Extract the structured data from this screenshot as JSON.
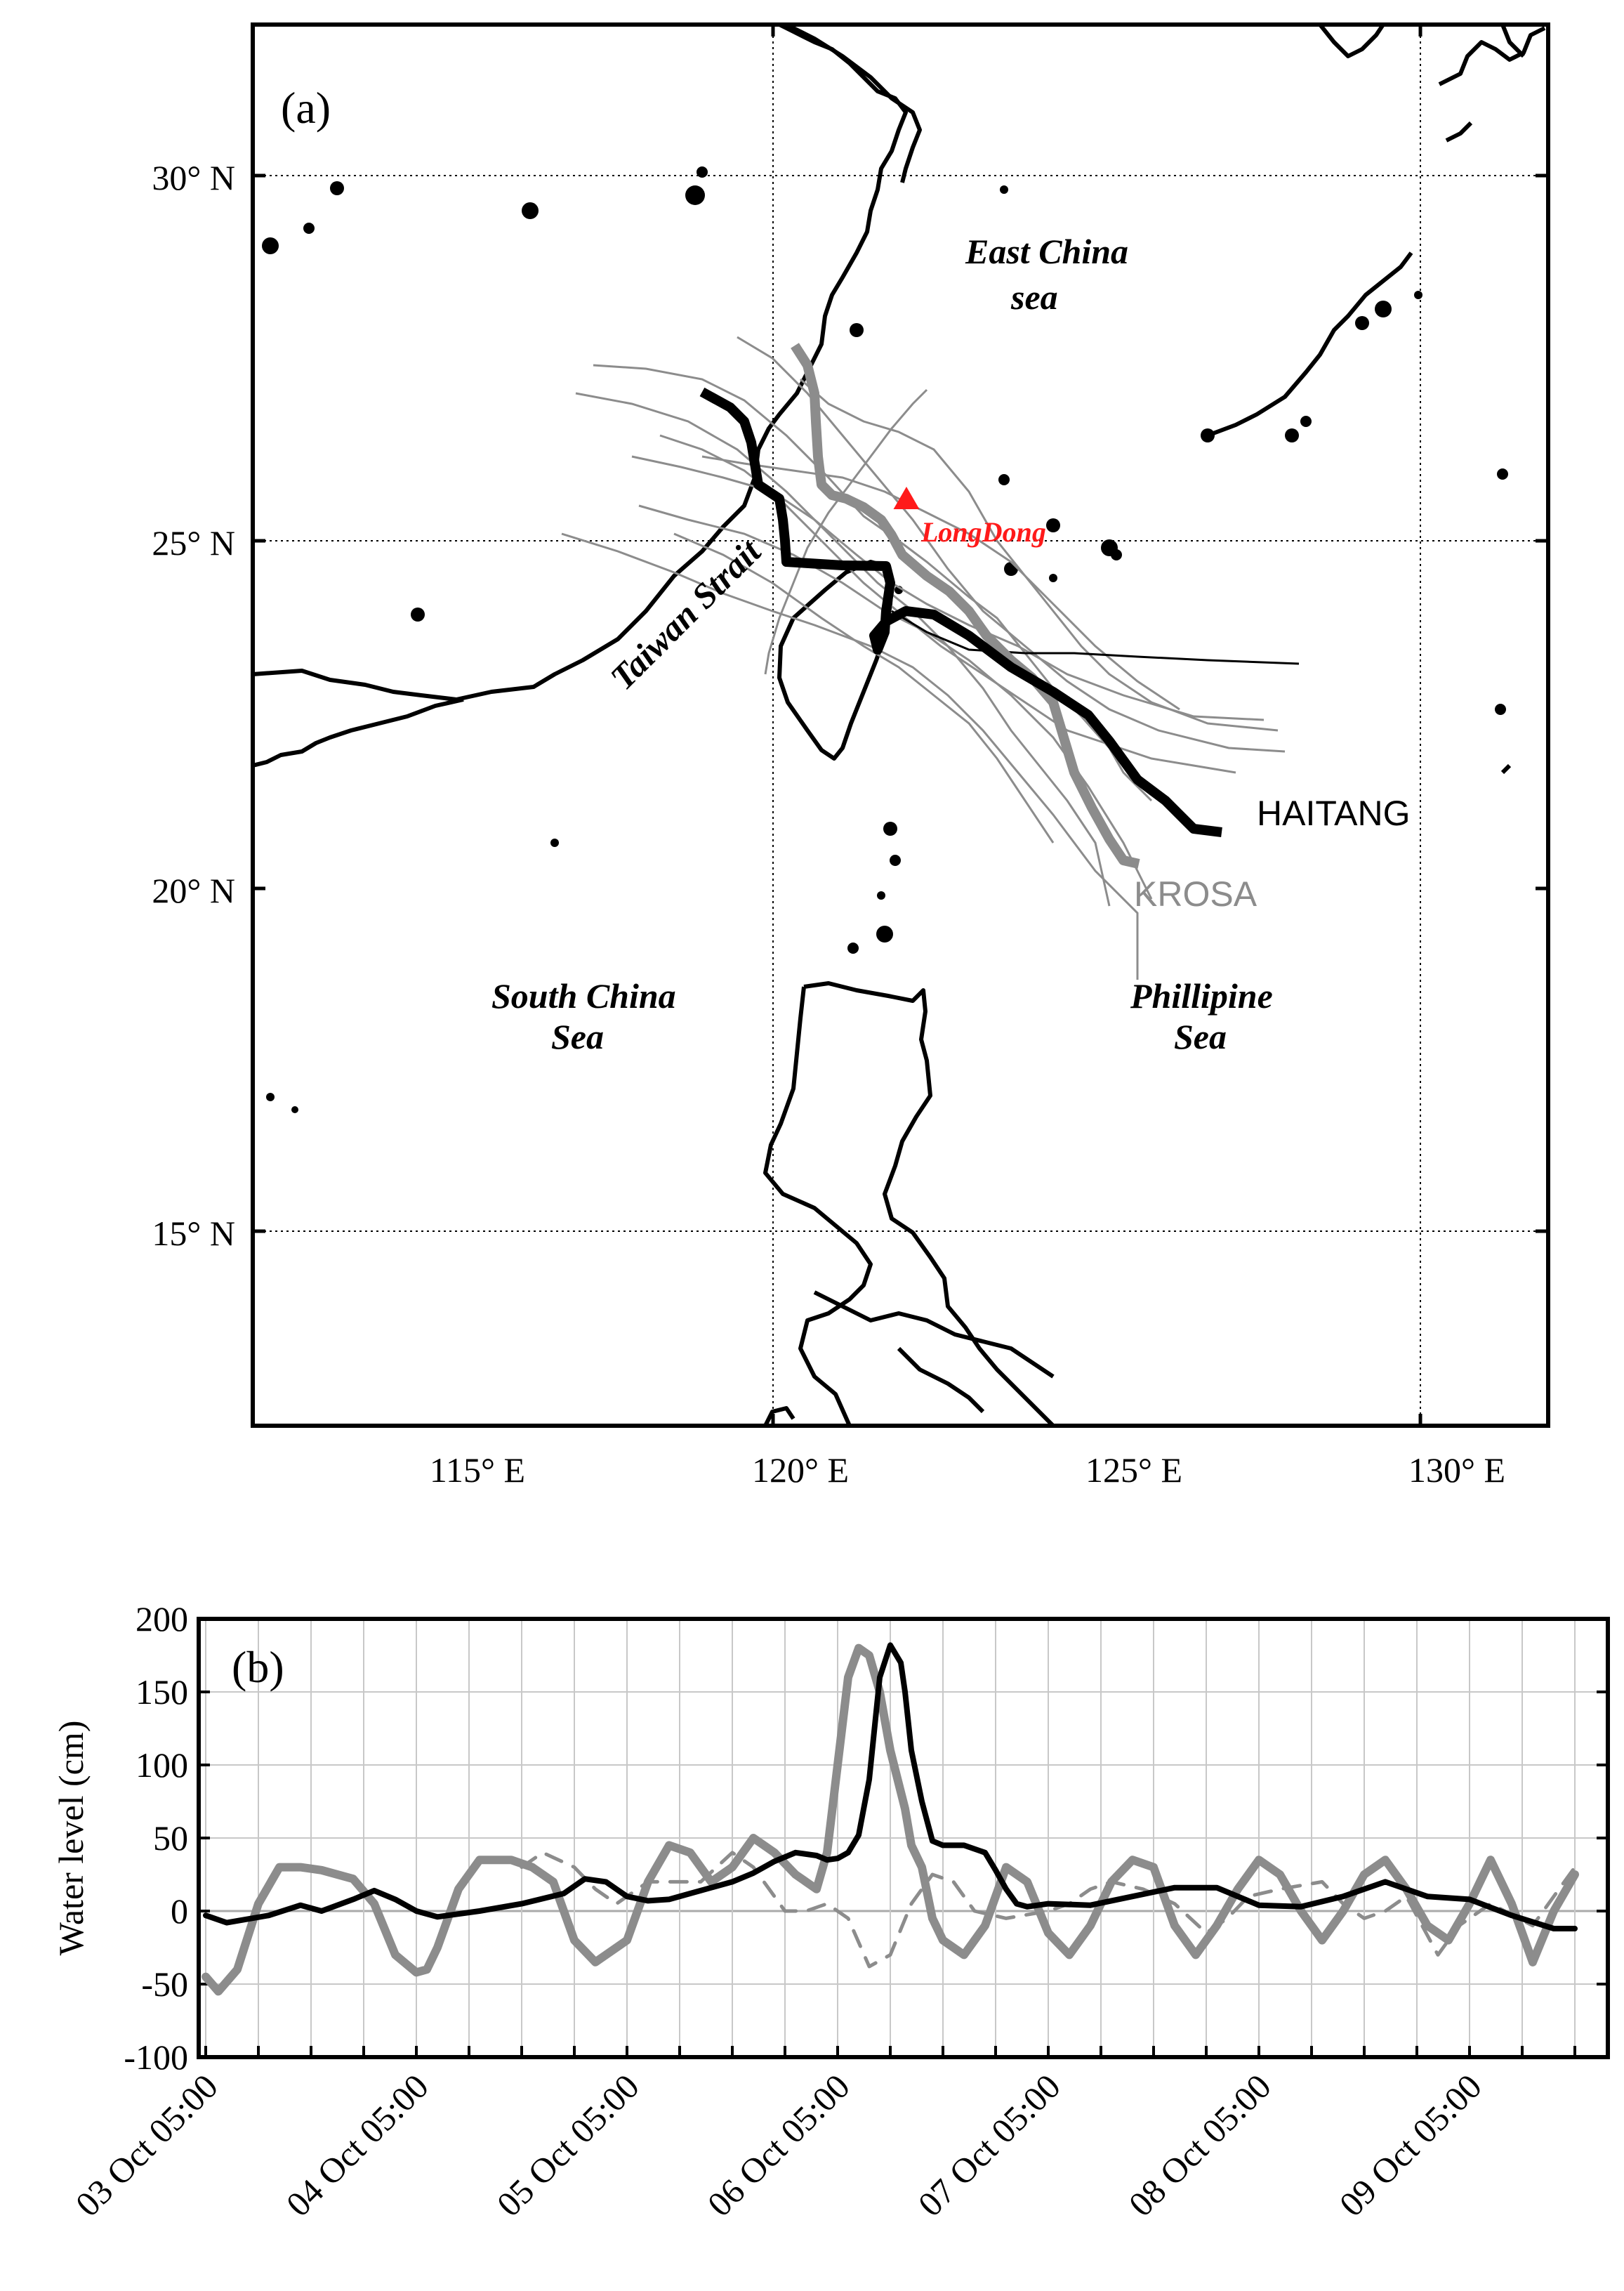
{
  "panel_a": {
    "label": "(a)",
    "lon_ticks": [
      "115° E",
      "120° E",
      "125° E",
      "130° E"
    ],
    "lat_ticks": [
      "15° N",
      "20° N",
      "25° N",
      "30° N"
    ],
    "sea_labels": {
      "east_china_1": "East China",
      "east_china_2": "sea",
      "taiwan_strait": "Taiwan Strait",
      "south_china_1": "South China",
      "south_china_2": "Sea",
      "philippine_1": "Phillipine",
      "philippine_2": "Sea"
    },
    "station": {
      "name": "LongDong",
      "color": "#ff1a1a"
    },
    "storms": [
      {
        "name": "HAITANG",
        "color": "#000000"
      },
      {
        "name": "KROSA",
        "color": "#8c8c8c"
      }
    ]
  },
  "chart_data": {
    "type": "line",
    "title": "(b)",
    "xlabel": "",
    "ylabel": "Water level (cm)",
    "ylim": [
      -100,
      200
    ],
    "yticks": [
      -100,
      -50,
      0,
      50,
      100,
      150,
      200
    ],
    "xticklabels": [
      "03 Oct 05:00",
      "04 Oct 05:00",
      "05 Oct 05:00",
      "06 Oct 05:00",
      "07 Oct 05:00",
      "08 Oct 05:00",
      "09 Oct 05:00"
    ],
    "x_units": "days since 03 Oct 05:00",
    "xlim": [
      0,
      6.5
    ],
    "grid": true,
    "series": [
      {
        "style": "black-solid",
        "x": [
          0,
          0.1,
          0.3,
          0.45,
          0.55,
          0.7,
          0.8,
          0.9,
          1.0,
          1.1,
          1.3,
          1.5,
          1.7,
          1.8,
          1.9,
          2.0,
          2.1,
          2.2,
          2.3,
          2.4,
          2.5,
          2.6,
          2.7,
          2.8,
          2.9,
          2.95,
          3.0,
          3.05,
          3.1,
          3.15,
          3.2,
          3.25,
          3.3,
          3.32,
          3.35,
          3.4,
          3.45,
          3.5,
          3.6,
          3.7,
          3.75,
          3.8,
          3.85,
          3.9,
          4.0,
          4.2,
          4.4,
          4.6,
          4.8,
          5.0,
          5.2,
          5.4,
          5.6,
          5.8,
          6.0,
          6.2,
          6.4,
          6.5
        ],
        "y": [
          -3,
          -8,
          -3,
          4,
          0,
          8,
          14,
          8,
          0,
          -4,
          0,
          5,
          12,
          22,
          20,
          10,
          7,
          8,
          12,
          16,
          20,
          26,
          34,
          40,
          38,
          35,
          36,
          40,
          52,
          90,
          160,
          182,
          170,
          150,
          110,
          75,
          48,
          45,
          45,
          40,
          28,
          15,
          5,
          3,
          5,
          4,
          10,
          16,
          16,
          4,
          3,
          10,
          20,
          10,
          8,
          -3,
          -12,
          -12
        ]
      },
      {
        "style": "gray-thick",
        "x": [
          0,
          0.06,
          0.15,
          0.25,
          0.35,
          0.45,
          0.55,
          0.7,
          0.8,
          0.9,
          1.0,
          1.05,
          1.1,
          1.2,
          1.3,
          1.45,
          1.55,
          1.65,
          1.75,
          1.85,
          2.0,
          2.1,
          2.2,
          2.3,
          2.4,
          2.5,
          2.6,
          2.7,
          2.8,
          2.9,
          2.95,
          3.0,
          3.05,
          3.1,
          3.15,
          3.2,
          3.25,
          3.32,
          3.35,
          3.4,
          3.45,
          3.5,
          3.6,
          3.7,
          3.75,
          3.8,
          3.9,
          4.0,
          4.1,
          4.2,
          4.3,
          4.4,
          4.5,
          4.6,
          4.7,
          4.8,
          4.9,
          5.0,
          5.1,
          5.2,
          5.3,
          5.4,
          5.5,
          5.6,
          5.7,
          5.8,
          5.9,
          6.0,
          6.1,
          6.2,
          6.3,
          6.4,
          6.5
        ],
        "y": [
          -45,
          -55,
          -40,
          5,
          30,
          30,
          28,
          22,
          5,
          -30,
          -42,
          -40,
          -25,
          15,
          35,
          35,
          30,
          20,
          -20,
          -35,
          -20,
          20,
          45,
          40,
          20,
          30,
          50,
          40,
          25,
          15,
          40,
          100,
          160,
          180,
          175,
          150,
          110,
          70,
          45,
          30,
          -5,
          -20,
          -30,
          -10,
          10,
          30,
          20,
          -15,
          -30,
          -10,
          20,
          35,
          30,
          -10,
          -30,
          -10,
          15,
          35,
          25,
          0,
          -20,
          0,
          25,
          35,
          15,
          -10,
          -20,
          5,
          35,
          5,
          -35,
          0,
          25
        ]
      },
      {
        "style": "gray-dashed",
        "x": [
          1.5,
          1.6,
          1.75,
          1.85,
          1.95,
          2.1,
          2.35,
          2.5,
          2.6,
          2.75,
          2.85,
          2.95,
          3.05,
          3.15,
          3.25,
          3.35,
          3.45,
          3.55,
          3.65,
          3.8,
          4.0,
          4.1,
          4.2,
          4.3,
          4.45,
          4.6,
          4.75,
          4.85,
          4.95,
          5.1,
          5.3,
          5.4,
          5.5,
          5.6,
          5.7,
          5.85,
          5.95,
          6.1,
          6.3,
          6.4,
          6.5
        ],
        "y": [
          30,
          40,
          30,
          15,
          5,
          20,
          20,
          40,
          30,
          0,
          0,
          5,
          -5,
          -38,
          -30,
          5,
          25,
          20,
          0,
          -5,
          0,
          5,
          15,
          20,
          15,
          5,
          -15,
          -5,
          10,
          15,
          20,
          5,
          -5,
          0,
          10,
          -30,
          -10,
          5,
          -10,
          10,
          30
        ]
      }
    ]
  }
}
